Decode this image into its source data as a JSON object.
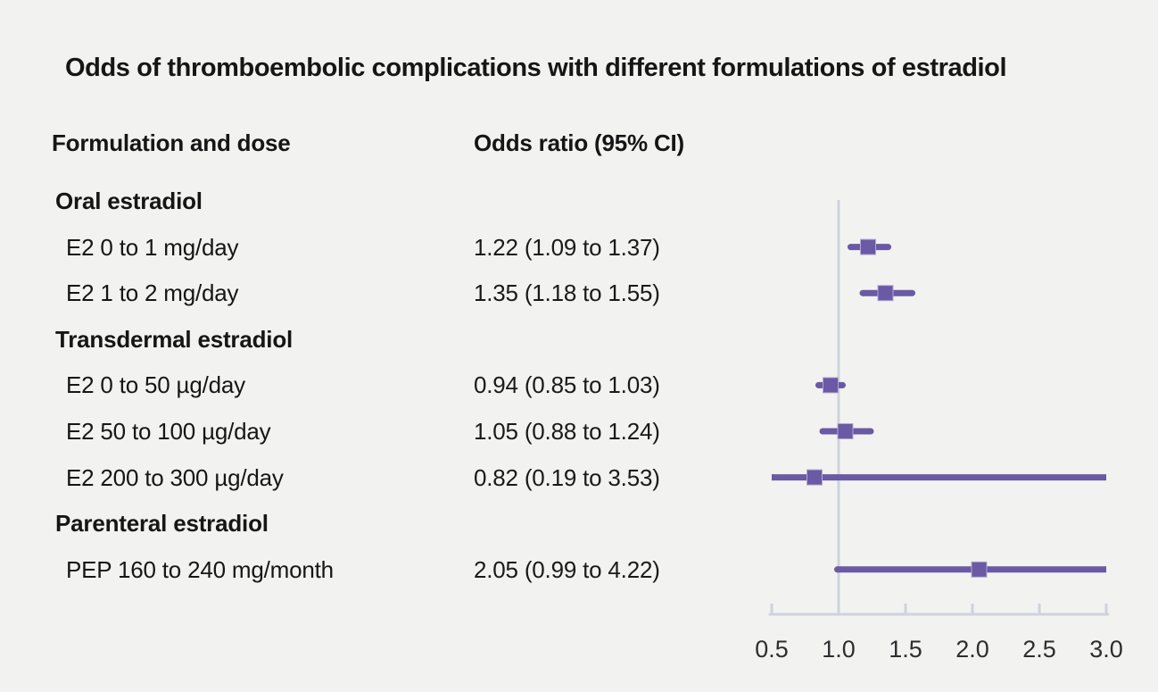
{
  "figure": {
    "title": "Odds of thromboembolic complications with different formulations of estradiol",
    "column_headers": {
      "formulation": "Formulation and dose",
      "odds_ratio": "Odds ratio (95% CI)"
    }
  },
  "colors": {
    "marker": "#6a59a4",
    "marker_edge": "#b3a8d2",
    "axis": "#cfd3dc",
    "background": "#f2f2f1",
    "text": "#161616"
  },
  "chart_data": {
    "type": "scatter",
    "subtype": "forest-plot",
    "title": "Odds of thromboembolic complications with different formulations of estradiol",
    "x_axis": {
      "min": 0.5,
      "max": 3.0,
      "tick_labels": [
        "0.5",
        "1.0",
        "1.5",
        "2.0",
        "2.5",
        "3.0"
      ],
      "tick_values": [
        0.5,
        1.0,
        1.5,
        2.0,
        2.5,
        3.0
      ],
      "reference_line": 1.0,
      "grid": false
    },
    "rows": [
      {
        "kind": "group",
        "label": "Oral estradiol"
      },
      {
        "kind": "item",
        "label": "E2 0 to 1 mg/day",
        "value_text": "1.22 (1.09 to 1.37)",
        "or": 1.22,
        "ci_low": 1.09,
        "ci_high": 1.37
      },
      {
        "kind": "item",
        "label": "E2 1 to 2 mg/day",
        "value_text": "1.35 (1.18 to 1.55)",
        "or": 1.35,
        "ci_low": 1.18,
        "ci_high": 1.55
      },
      {
        "kind": "group",
        "label": "Transdermal estradiol"
      },
      {
        "kind": "item",
        "label": "E2 0 to 50 µg/day",
        "value_text": "0.94 (0.85 to 1.03)",
        "or": 0.94,
        "ci_low": 0.85,
        "ci_high": 1.03
      },
      {
        "kind": "item",
        "label": "E2 50 to 100 µg/day",
        "value_text": "1.05 (0.88 to 1.24)",
        "or": 1.05,
        "ci_low": 0.88,
        "ci_high": 1.24
      },
      {
        "kind": "item",
        "label": "E2 200 to 300 µg/day",
        "value_text": "0.82 (0.19 to 3.53)",
        "or": 0.82,
        "ci_low": 0.19,
        "ci_high": 3.53
      },
      {
        "kind": "group",
        "label": "Parenteral estradiol"
      },
      {
        "kind": "item",
        "label": "PEP 160 to 240 mg/month",
        "value_text": "2.05 (0.99 to 4.22)",
        "or": 2.05,
        "ci_low": 0.99,
        "ci_high": 4.22
      }
    ]
  }
}
